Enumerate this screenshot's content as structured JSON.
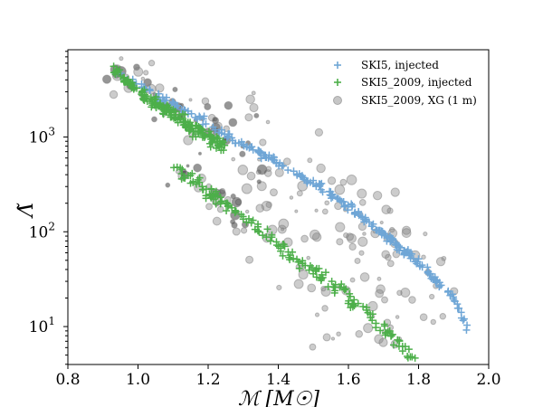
{
  "chart_data": {
    "type": "scatter",
    "xlabel": "ℳ [M☉]",
    "ylabel": "Λ̃",
    "xlim": [
      0.8,
      2.0
    ],
    "ylim_log10": [
      0.6,
      3.92
    ],
    "yscale": "log",
    "grid": false,
    "legend_position": "top-right",
    "x_ticks": [
      "0.8",
      "1.0",
      "1.2",
      "1.4",
      "1.6",
      "1.8",
      "2.0"
    ],
    "y_ticks": [
      {
        "label": "10",
        "sup": "1",
        "value": 10
      },
      {
        "label": "10",
        "sup": "2",
        "value": 100
      },
      {
        "label": "10",
        "sup": "3",
        "value": 1000
      }
    ],
    "series": [
      {
        "name": "SKI5, injected",
        "marker": "plus",
        "color": "#6fa6d6",
        "curve": [
          [
            0.93,
            5200
          ],
          [
            1.0,
            3500
          ],
          [
            1.1,
            2250
          ],
          [
            1.2,
            1350
          ],
          [
            1.3,
            820
          ],
          [
            1.4,
            520
          ],
          [
            1.5,
            330
          ],
          [
            1.6,
            185
          ],
          [
            1.7,
            95
          ],
          [
            1.8,
            47
          ],
          [
            1.9,
            20
          ],
          [
            1.94,
            9.5
          ]
        ]
      },
      {
        "name": "SKI5_2009, injected",
        "marker": "plus",
        "color": "#4daf4a",
        "curve_upper": [
          [
            0.93,
            5200
          ],
          [
            1.0,
            3000
          ],
          [
            1.1,
            1700
          ],
          [
            1.2,
            1000
          ],
          [
            1.25,
            800
          ]
        ],
        "curve_lower": [
          [
            1.1,
            500
          ],
          [
            1.2,
            260
          ],
          [
            1.3,
            140
          ],
          [
            1.4,
            70
          ],
          [
            1.5,
            38
          ],
          [
            1.6,
            20
          ],
          [
            1.7,
            9.5
          ],
          [
            1.8,
            4
          ]
        ]
      },
      {
        "name": "SKI5_2009, XG (1 m)",
        "marker": "circle",
        "color": "#808080"
      }
    ]
  },
  "legend": {
    "items": [
      "SKI5, injected",
      "SKI5_2009, injected",
      "SKI5_2009, XG (1 m)"
    ]
  }
}
